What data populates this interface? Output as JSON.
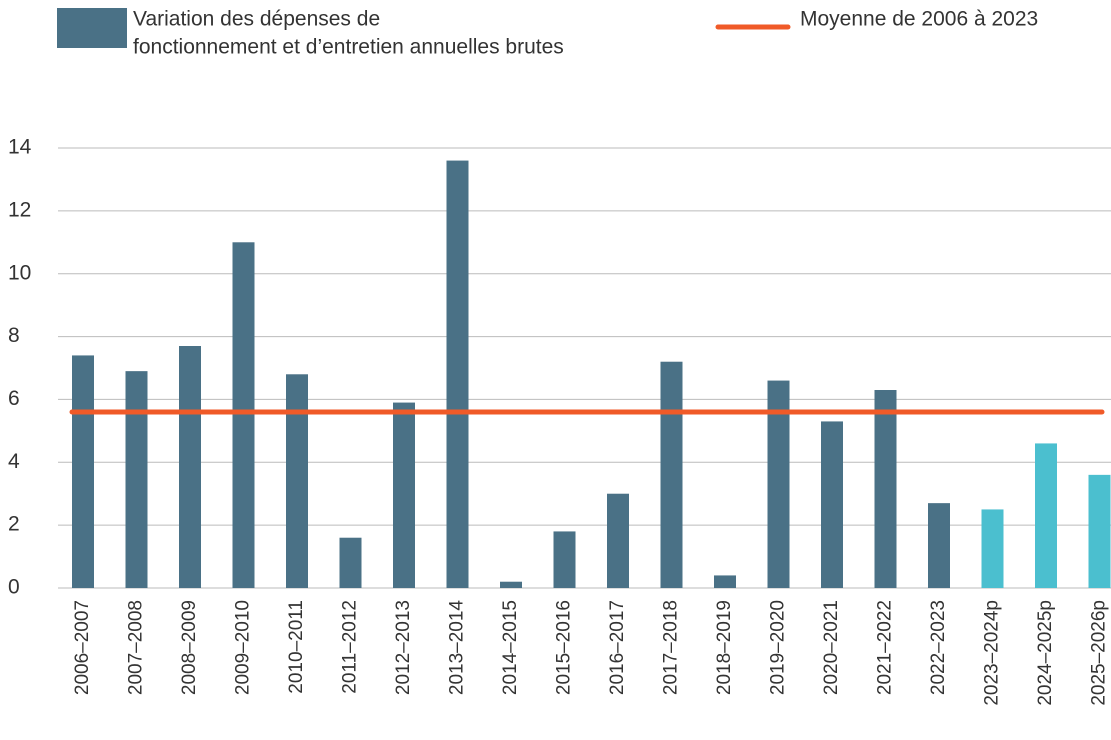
{
  "chart_data": {
    "type": "bar",
    "categories": [
      "2006–2007",
      "2007–2008",
      "2008–2009",
      "2009–2010",
      "2010–2011",
      "2011–2012",
      "2012–2013",
      "2013–2014",
      "2014–2015",
      "2015–2016",
      "2016–2017",
      "2017–2018",
      "2018–2019",
      "2019–2020",
      "2020–2021",
      "2021–2022",
      "2022–2023",
      "2023–2024p",
      "2024–2025p",
      "2025–2026p"
    ],
    "series": [
      {
        "name": [
          "Variation des dépenses de",
          "fonctionnement et d’entretien annuelles brutes"
        ],
        "color": "#4a7186",
        "values": [
          7.4,
          6.9,
          7.7,
          11.0,
          6.8,
          1.6,
          5.9,
          13.6,
          0.2,
          1.8,
          3.0,
          7.2,
          0.4,
          6.6,
          5.3,
          6.3,
          2.7,
          2.5,
          4.6,
          3.6
        ],
        "colors": [
          "#4a7186",
          "#4a7186",
          "#4a7186",
          "#4a7186",
          "#4a7186",
          "#4a7186",
          "#4a7186",
          "#4a7186",
          "#4a7186",
          "#4a7186",
          "#4a7186",
          "#4a7186",
          "#4a7186",
          "#4a7186",
          "#4a7186",
          "#4a7186",
          "#4a7186",
          "#4bbfcf",
          "#4bbfcf",
          "#4bbfcf"
        ]
      }
    ],
    "average": {
      "name": "Moyenne de 2006 à 2023",
      "color": "#f05a28",
      "value": 5.6
    },
    "ylim": [
      0,
      14
    ],
    "yticks": [
      0,
      2,
      4,
      6,
      8,
      10,
      12,
      14
    ],
    "grid": true
  }
}
